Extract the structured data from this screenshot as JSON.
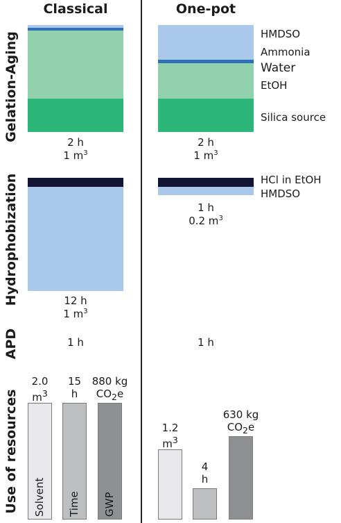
{
  "columns": {
    "classical": "Classical",
    "onepot": "One-pot"
  },
  "rows": {
    "gelation": "Gelation-Aging",
    "hydro": "Hydrophobization",
    "apd": "APD",
    "resources": "Use of resources"
  },
  "layers": {
    "hmdso": "HMDSO",
    "ammonia": "Ammonia",
    "water": "Water",
    "etoh": "EtOH",
    "silica": "Silica source",
    "hcl": "HCl in EtOH",
    "hmdso2": "HMDSO"
  },
  "captions": {
    "classical_gel_time": "2 h",
    "classical_gel_vol": "1 m",
    "onepot_gel_time": "2 h",
    "onepot_gel_vol": "1 m",
    "classical_hydro_time": "12 h",
    "classical_hydro_vol": "1 m",
    "onepot_hydro_time": "1 h",
    "onepot_hydro_vol": "0.2 m",
    "classical_apd": "1 h",
    "onepot_apd": "1 h",
    "sup3": "3"
  },
  "colors": {
    "light_blue": "#a9c8ea",
    "blue_line": "#2f6fb5",
    "light_green": "#91d1ac",
    "green": "#2db678",
    "navy": "#141433",
    "bar_solvent": "#e7e7ec",
    "bar_time": "#bdbfc1",
    "bar_gwp": "#8e9093"
  },
  "chart_data": {
    "type": "bar",
    "categories": [
      "Solvent",
      "Time",
      "GWP"
    ],
    "series": [
      {
        "name": "Classical",
        "values": [
          2.0,
          15,
          880
        ]
      },
      {
        "name": "One-pot",
        "values": [
          1.2,
          4,
          630
        ]
      }
    ],
    "value_labels": {
      "Classical": [
        [
          "2.0",
          "m3"
        ],
        [
          "15",
          "h"
        ],
        [
          "880 kg",
          "CO2e"
        ]
      ],
      "One-pot": [
        [
          "1.2",
          "m3"
        ],
        [
          "4",
          "h"
        ],
        [
          "630 kg",
          "CO2e"
        ]
      ]
    },
    "units": {
      "m3": "m",
      "h": "h",
      "co2": "CO",
      "co2_sub": "2",
      "co2_e": "e",
      "sup3": "3"
    }
  }
}
